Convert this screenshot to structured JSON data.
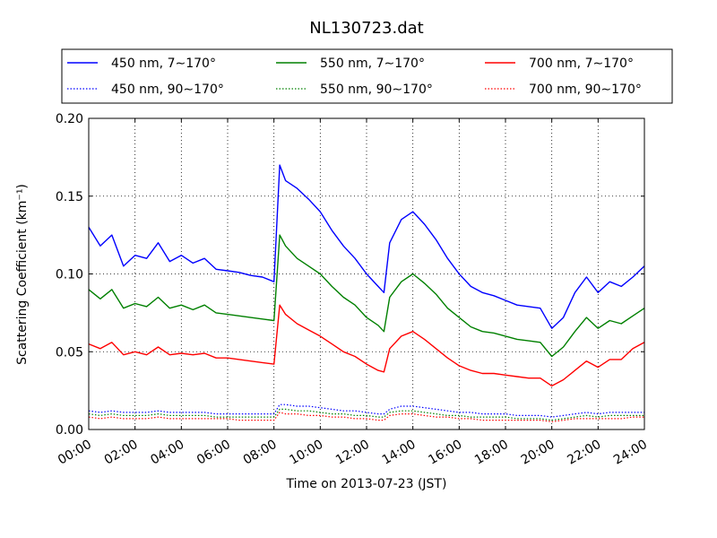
{
  "chart_data": {
    "type": "line",
    "title": "NL130723.dat",
    "xlabel": "Time on 2013-07-23 (JST)",
    "ylabel": "Scattering Coefficient (km⁻¹)",
    "xlim": [
      0,
      24
    ],
    "ylim": [
      0,
      0.2
    ],
    "x_tick_labels": [
      "00:00",
      "02:00",
      "04:00",
      "06:00",
      "08:00",
      "10:00",
      "12:00",
      "14:00",
      "16:00",
      "18:00",
      "20:00",
      "22:00",
      "24:00"
    ],
    "y_tick_labels": [
      "0.00",
      "0.05",
      "0.10",
      "0.15",
      "0.20"
    ],
    "grid": true,
    "legend_placement": "top",
    "x": [
      0,
      0.5,
      1,
      1.5,
      2,
      2.5,
      3,
      3.5,
      4,
      4.5,
      5,
      5.5,
      6,
      6.5,
      7,
      7.5,
      8,
      8.25,
      8.5,
      9,
      9.5,
      10,
      10.5,
      11,
      11.5,
      12,
      12.5,
      12.75,
      13,
      13.5,
      14,
      14.5,
      15,
      15.5,
      16,
      16.5,
      17,
      17.5,
      18,
      18.5,
      19,
      19.5,
      20,
      20.5,
      21,
      21.5,
      22,
      22.5,
      23,
      23.5,
      24
    ],
    "series": [
      {
        "name": "450 nm, 7∼170°",
        "color": "#0000ff",
        "style": "solid",
        "values": [
          0.13,
          0.118,
          0.125,
          0.105,
          0.112,
          0.11,
          0.12,
          0.108,
          0.112,
          0.107,
          0.11,
          0.103,
          0.102,
          0.101,
          0.099,
          0.098,
          0.095,
          0.17,
          0.16,
          0.155,
          0.148,
          0.14,
          0.128,
          0.118,
          0.11,
          0.1,
          0.092,
          0.088,
          0.12,
          0.135,
          0.14,
          0.132,
          0.122,
          0.11,
          0.1,
          0.092,
          0.088,
          0.086,
          0.083,
          0.08,
          0.079,
          0.078,
          0.065,
          0.072,
          0.088,
          0.098,
          0.088,
          0.095,
          0.092,
          0.098,
          0.105
        ]
      },
      {
        "name": "550 nm, 7∼170°",
        "color": "#008000",
        "style": "solid",
        "values": [
          0.09,
          0.084,
          0.09,
          0.078,
          0.081,
          0.079,
          0.085,
          0.078,
          0.08,
          0.077,
          0.08,
          0.075,
          0.074,
          0.073,
          0.072,
          0.071,
          0.07,
          0.125,
          0.118,
          0.11,
          0.105,
          0.1,
          0.092,
          0.085,
          0.08,
          0.072,
          0.067,
          0.063,
          0.085,
          0.095,
          0.1,
          0.094,
          0.087,
          0.078,
          0.072,
          0.066,
          0.063,
          0.062,
          0.06,
          0.058,
          0.057,
          0.056,
          0.047,
          0.053,
          0.063,
          0.072,
          0.065,
          0.07,
          0.068,
          0.073,
          0.078
        ]
      },
      {
        "name": "700 nm, 7∼170°",
        "color": "#ff0000",
        "style": "solid",
        "values": [
          0.055,
          0.052,
          0.056,
          0.048,
          0.05,
          0.048,
          0.053,
          0.048,
          0.049,
          0.048,
          0.049,
          0.046,
          0.046,
          0.045,
          0.044,
          0.043,
          0.042,
          0.08,
          0.074,
          0.068,
          0.064,
          0.06,
          0.055,
          0.05,
          0.047,
          0.042,
          0.038,
          0.037,
          0.052,
          0.06,
          0.063,
          0.058,
          0.052,
          0.046,
          0.041,
          0.038,
          0.036,
          0.036,
          0.035,
          0.034,
          0.033,
          0.033,
          0.028,
          0.032,
          0.038,
          0.044,
          0.04,
          0.045,
          0.045,
          0.052,
          0.056
        ]
      },
      {
        "name": "450 nm, 90∼170°",
        "color": "#0000ff",
        "style": "dotted",
        "values": [
          0.012,
          0.011,
          0.012,
          0.011,
          0.011,
          0.011,
          0.012,
          0.011,
          0.011,
          0.011,
          0.011,
          0.01,
          0.01,
          0.01,
          0.01,
          0.01,
          0.01,
          0.016,
          0.016,
          0.015,
          0.015,
          0.014,
          0.013,
          0.012,
          0.012,
          0.011,
          0.01,
          0.01,
          0.013,
          0.015,
          0.015,
          0.014,
          0.013,
          0.012,
          0.011,
          0.011,
          0.01,
          0.01,
          0.01,
          0.009,
          0.009,
          0.009,
          0.008,
          0.009,
          0.01,
          0.011,
          0.01,
          0.011,
          0.011,
          0.011,
          0.011
        ]
      },
      {
        "name": "550 nm, 90∼170°",
        "color": "#008000",
        "style": "dotted",
        "values": [
          0.01,
          0.009,
          0.01,
          0.009,
          0.009,
          0.009,
          0.01,
          0.009,
          0.009,
          0.009,
          0.009,
          0.008,
          0.008,
          0.008,
          0.008,
          0.008,
          0.008,
          0.013,
          0.013,
          0.012,
          0.012,
          0.011,
          0.01,
          0.01,
          0.009,
          0.009,
          0.008,
          0.008,
          0.011,
          0.012,
          0.012,
          0.011,
          0.01,
          0.009,
          0.009,
          0.008,
          0.008,
          0.008,
          0.008,
          0.007,
          0.007,
          0.007,
          0.006,
          0.007,
          0.008,
          0.009,
          0.008,
          0.009,
          0.009,
          0.009,
          0.009
        ]
      },
      {
        "name": "700 nm, 90∼170°",
        "color": "#ff0000",
        "style": "dotted",
        "values": [
          0.008,
          0.007,
          0.008,
          0.007,
          0.007,
          0.007,
          0.008,
          0.007,
          0.007,
          0.007,
          0.007,
          0.007,
          0.007,
          0.006,
          0.006,
          0.006,
          0.006,
          0.011,
          0.01,
          0.01,
          0.009,
          0.009,
          0.008,
          0.008,
          0.007,
          0.007,
          0.006,
          0.006,
          0.009,
          0.01,
          0.01,
          0.009,
          0.008,
          0.008,
          0.007,
          0.007,
          0.006,
          0.006,
          0.006,
          0.006,
          0.006,
          0.006,
          0.005,
          0.006,
          0.007,
          0.007,
          0.007,
          0.007,
          0.007,
          0.008,
          0.008
        ]
      }
    ]
  }
}
